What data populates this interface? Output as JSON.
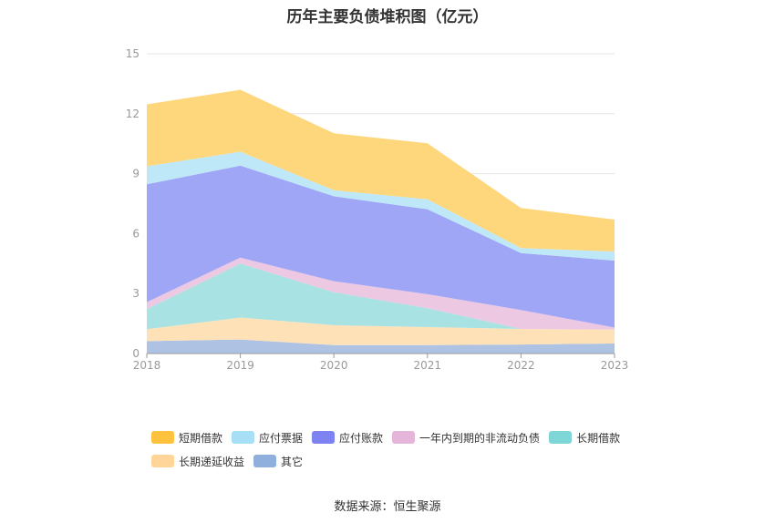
{
  "title": "历年主要负债堆积图（亿元）",
  "source": "数据来源：恒生聚源",
  "chart_data": {
    "type": "area",
    "stacked": true,
    "categories": [
      "2018",
      "2019",
      "2020",
      "2021",
      "2022",
      "2023"
    ],
    "ylim": [
      0,
      15
    ],
    "yticks": [
      0,
      3,
      6,
      9,
      12,
      15
    ],
    "grid": true,
    "legend_position": "bottom",
    "series": [
      {
        "name": "其它",
        "color": "#aec2e3",
        "legend_color": "#8fb0dc",
        "values": [
          0.62,
          0.7,
          0.42,
          0.42,
          0.45,
          0.5
        ]
      },
      {
        "name": "长期递延收益",
        "color": "#ffe1b8",
        "legend_color": "#ffd59a",
        "values": [
          0.6,
          1.1,
          1.0,
          0.9,
          0.78,
          0.7
        ]
      },
      {
        "name": "长期借款",
        "color": "#a8e2e2",
        "legend_color": "#7fd6d6",
        "values": [
          1.0,
          2.7,
          1.65,
          0.95,
          0.0,
          0.0
        ]
      },
      {
        "name": "一年内到期的非流动负债",
        "color": "#ecc8e2",
        "legend_color": "#e6b6da",
        "values": [
          0.35,
          0.3,
          0.55,
          0.7,
          0.95,
          0.1
        ]
      },
      {
        "name": "应付账款",
        "color": "#9fa6f5",
        "legend_color": "#7d83f0",
        "values": [
          5.9,
          4.6,
          4.25,
          4.25,
          2.85,
          3.35
        ]
      },
      {
        "name": "应付票据",
        "color": "#bee8f8",
        "legend_color": "#a7e0f6",
        "values": [
          0.9,
          0.7,
          0.3,
          0.5,
          0.25,
          0.45
        ]
      },
      {
        "name": "短期借款",
        "color": "#fed67c",
        "legend_color": "#fec23e",
        "values": [
          3.1,
          3.1,
          2.85,
          2.8,
          2.0,
          1.6
        ]
      }
    ]
  },
  "legend_order": [
    "短期借款",
    "应付票据",
    "应付账款",
    "一年内到期的非流动负债",
    "长期借款",
    "长期递延收益",
    "其它"
  ]
}
